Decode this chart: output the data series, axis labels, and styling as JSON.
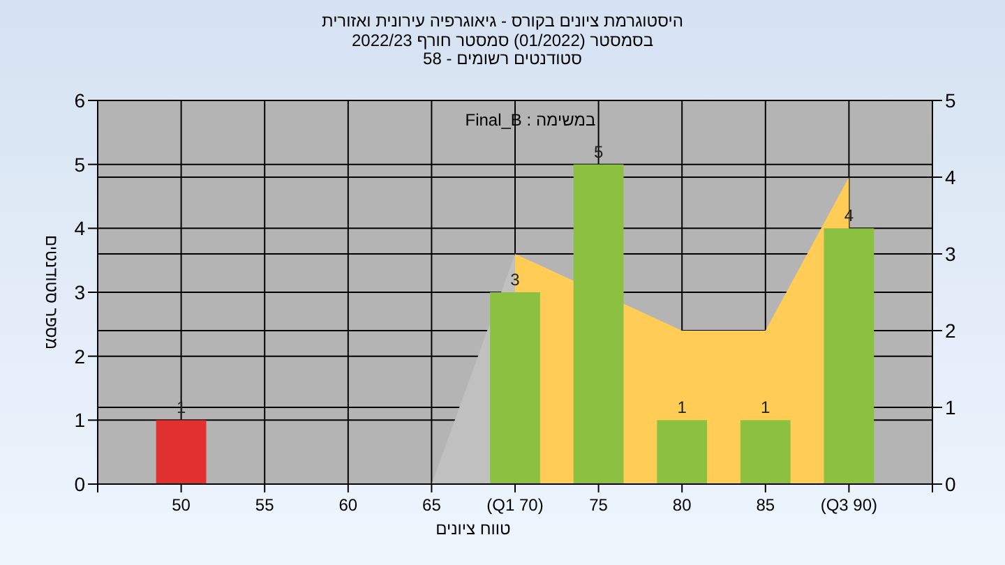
{
  "chart_data": {
    "type": "bar",
    "title": "היסטוגרמת ציונים בקורס - גיאוגרפיה עירונית ואזורית",
    "subtitle": "בסמסטר (01/2022) סמסטר חורף 2022/23\nסטודנטים רשומים - 58",
    "xlabel": "טווח ציונים",
    "ylabel": "מספר סטודנטים",
    "annotations": [
      "במשימה : Final_B"
    ],
    "categories": [
      "50",
      "55",
      "60",
      "65",
      "(Q1 70)",
      "75",
      "80",
      "85",
      "(Q3 90)"
    ],
    "series": [
      {
        "type": "area",
        "axis": "y2",
        "color": "#c0c0c0",
        "values": [
          null,
          null,
          null,
          0,
          3,
          null,
          null,
          null,
          null
        ]
      },
      {
        "type": "area",
        "axis": "y2",
        "color": "#ffcc55",
        "values": [
          null,
          null,
          null,
          null,
          3,
          null,
          2,
          2,
          4
        ]
      },
      {
        "colors": [
          "#e03030",
          "#8cc040",
          "#8cc040",
          "#8cc040",
          "#8cc040",
          "#8cc040",
          "#8cc040",
          "#8cc040",
          "#8cc040"
        ],
        "values": [
          1,
          0,
          0,
          0,
          3,
          5,
          1,
          1,
          4
        ],
        "value_labels": [
          "1",
          null,
          null,
          null,
          "3",
          "5",
          "1",
          "1",
          "4"
        ]
      }
    ],
    "ylim": [
      0,
      6
    ],
    "yticks": [
      0,
      1,
      2,
      3,
      4,
      5,
      6
    ],
    "y2lim": [
      0,
      5
    ],
    "y2ticks": [
      0,
      1,
      2,
      3,
      4,
      5
    ],
    "grid": true
  }
}
